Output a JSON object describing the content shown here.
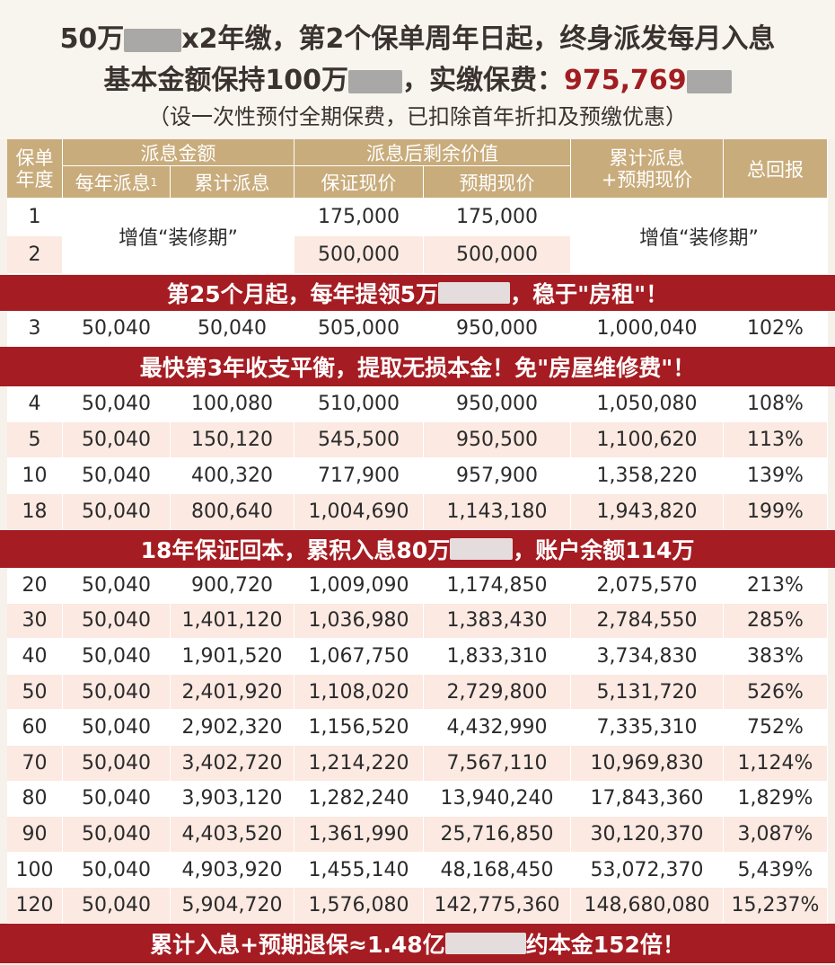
{
  "header": {
    "line1_a": "50万",
    "line1_b": "x2年缴，第2个保单周年日起，终身派发每月入息",
    "line2_a": "基本金额保持100万",
    "line2_b": "，实缴保费：",
    "line2_value": "975,769",
    "line3": "（设一次性预付全期保费，已扣除首年折扣及预缴优惠）"
  },
  "table": {
    "col_year": "保单\n年度",
    "group_payout": "派息金额",
    "col_annual": "每年派息",
    "col_annual_sup": "1",
    "col_cumulative": "累计派息",
    "group_remaining": "派息后剩余价值",
    "col_guaranteed": "保证现价",
    "col_expected": "预期现价",
    "col_total_value": "累计派息\n+预期现价",
    "col_return": "总回报",
    "renovation_label": "增值“装修期”",
    "early_rows": [
      {
        "year": "1",
        "guaranteed": "175,000",
        "expected": "175,000"
      },
      {
        "year": "2",
        "guaranteed": "500,000",
        "expected": "500,000"
      }
    ],
    "banner1": "第25个月起，每年提领5万",
    "banner1_tail": "，稳于\"房租\"！",
    "row3": {
      "year": "3",
      "annual": "50,040",
      "cumulative": "50,040",
      "guaranteed": "505,000",
      "expected": "950,000",
      "total": "1,000,040",
      "return": "102%"
    },
    "banner2": "最快第3年收支平衡，提取无损本金！免\"房屋维修费\"！",
    "rows_a": [
      {
        "year": "4",
        "annual": "50,040",
        "cumulative": "100,080",
        "guaranteed": "510,000",
        "expected": "950,000",
        "total": "1,050,080",
        "return": "108%"
      },
      {
        "year": "5",
        "annual": "50,040",
        "cumulative": "150,120",
        "guaranteed": "545,500",
        "expected": "950,500",
        "total": "1,100,620",
        "return": "113%"
      },
      {
        "year": "10",
        "annual": "50,040",
        "cumulative": "400,320",
        "guaranteed": "717,900",
        "expected": "957,900",
        "total": "1,358,220",
        "return": "139%"
      },
      {
        "year": "18",
        "annual": "50,040",
        "cumulative": "800,640",
        "guaranteed": "1,004,690",
        "expected": "1,143,180",
        "total": "1,943,820",
        "return": "199%"
      }
    ],
    "banner3": "18年保证回本，累积入息80万",
    "banner3_tail": "，账户余额114万",
    "rows_b": [
      {
        "year": "20",
        "annual": "50,040",
        "cumulative": "900,720",
        "guaranteed": "1,009,090",
        "expected": "1,174,850",
        "total": "2,075,570",
        "return": "213%"
      },
      {
        "year": "30",
        "annual": "50,040",
        "cumulative": "1,401,120",
        "guaranteed": "1,036,980",
        "expected": "1,383,430",
        "total": "2,784,550",
        "return": "285%"
      },
      {
        "year": "40",
        "annual": "50,040",
        "cumulative": "1,901,520",
        "guaranteed": "1,067,750",
        "expected": "1,833,310",
        "total": "3,734,830",
        "return": "383%"
      },
      {
        "year": "50",
        "annual": "50,040",
        "cumulative": "2,401,920",
        "guaranteed": "1,108,020",
        "expected": "2,729,800",
        "total": "5,131,720",
        "return": "526%"
      },
      {
        "year": "60",
        "annual": "50,040",
        "cumulative": "2,902,320",
        "guaranteed": "1,156,520",
        "expected": "4,432,990",
        "total": "7,335,310",
        "return": "752%"
      },
      {
        "year": "70",
        "annual": "50,040",
        "cumulative": "3,402,720",
        "guaranteed": "1,214,220",
        "expected": "7,567,110",
        "total": "10,969,830",
        "return": "1,124%"
      },
      {
        "year": "80",
        "annual": "50,040",
        "cumulative": "3,903,120",
        "guaranteed": "1,282,240",
        "expected": "13,940,240",
        "total": "17,843,360",
        "return": "1,829%"
      },
      {
        "year": "90",
        "annual": "50,040",
        "cumulative": "4,403,520",
        "guaranteed": "1,361,990",
        "expected": "25,716,850",
        "total": "30,120,370",
        "return": "3,087%"
      },
      {
        "year": "100",
        "annual": "50,040",
        "cumulative": "4,903,920",
        "guaranteed": "1,455,140",
        "expected": "48,168,450",
        "total": "53,072,370",
        "return": "5,439%"
      },
      {
        "year": "120",
        "annual": "50,040",
        "cumulative": "5,904,720",
        "guaranteed": "1,576,080",
        "expected": "142,775,360",
        "total": "148,680,080",
        "return": "15,237%"
      }
    ],
    "banner4": "累计入息+预期退保≈1.48亿",
    "banner4_tail": "约本金152倍！"
  },
  "colors": {
    "header_gold": "#c9ac7c",
    "banner_red": "#a51c22",
    "accent_red": "#a11d22",
    "row_pink": "#fbe9e2"
  }
}
